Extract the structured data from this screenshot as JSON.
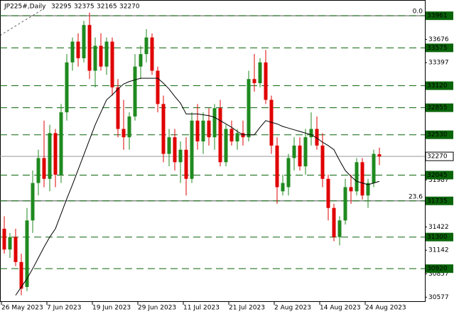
{
  "chart_data": {
    "type": "candlestick",
    "title": "JP225#,Daily",
    "categories": [
      "26 May 2023",
      null,
      null,
      null,
      null,
      null,
      null,
      null,
      "7 Jun 2023",
      null,
      null,
      null,
      null,
      null,
      null,
      null,
      "19 Jun 2023",
      null,
      null,
      null,
      null,
      null,
      null,
      null,
      "29 Jun 2023",
      null,
      null,
      null,
      null,
      null,
      null,
      null,
      "11 Jul 2023",
      null,
      null,
      null,
      null,
      null,
      null,
      null,
      "21 Jul 2023",
      null,
      null,
      null,
      null,
      null,
      null,
      null,
      "2 Aug 2023",
      null,
      null,
      null,
      null,
      null,
      null,
      null,
      "14 Aug 2023",
      null,
      null,
      null,
      null,
      null,
      null,
      null,
      "24 Aug 2023",
      null,
      null
    ],
    "open": [
      31400,
      31150,
      31300,
      31000,
      30700,
      31500,
      31950,
      32250,
      32000,
      32550,
      32050,
      32800,
      33400,
      33650,
      33450,
      33850,
      33300,
      33600,
      33350,
      33650,
      33100,
      32600,
      32500,
      32750,
      33350,
      33500,
      33700,
      33300,
      32900,
      32300,
      32500,
      32200,
      32350,
      32000,
      32700,
      32450,
      32700,
      32500,
      32850,
      32200,
      32600,
      32450,
      32550,
      32500,
      33200,
      33150,
      33400,
      32950,
      32400,
      31850,
      31900,
      32250,
      32400,
      32150,
      32500,
      32600,
      32400,
      32000,
      31650,
      31300,
      31500,
      31900,
      31850,
      32200,
      31800,
      31950,
      32295
    ],
    "high": [
      31550,
      31350,
      31400,
      31100,
      31650,
      32100,
      32350,
      32700,
      32650,
      32600,
      32900,
      33500,
      33700,
      33750,
      33900,
      34000,
      33700,
      33750,
      33700,
      33700,
      33200,
      32950,
      32800,
      33500,
      33600,
      33800,
      33750,
      33350,
      33000,
      32600,
      32600,
      32450,
      32500,
      32800,
      32900,
      32800,
      32850,
      32900,
      32950,
      32650,
      32700,
      32600,
      32700,
      33300,
      33500,
      33450,
      33550,
      33000,
      32500,
      32050,
      32300,
      32500,
      32500,
      32600,
      32800,
      32750,
      32550,
      32050,
      31700,
      31550,
      32000,
      32050,
      32250,
      32250,
      32000,
      32350,
      32375
    ],
    "low": [
      31100,
      31050,
      30950,
      30600,
      30650,
      31350,
      31800,
      31900,
      31850,
      31900,
      31950,
      32700,
      33300,
      33350,
      33400,
      33200,
      33100,
      33300,
      33250,
      33000,
      32500,
      32350,
      32350,
      32700,
      33200,
      33400,
      33250,
      32800,
      32200,
      32150,
      32100,
      31950,
      31800,
      31950,
      32350,
      32300,
      32400,
      32350,
      32150,
      32150,
      32400,
      32350,
      32400,
      32450,
      33050,
      33100,
      32900,
      32300,
      31700,
      31800,
      31800,
      32100,
      32100,
      32050,
      32400,
      32350,
      31900,
      31500,
      31250,
      31200,
      31450,
      31700,
      31800,
      31750,
      31650,
      31900,
      32165
    ],
    "close": [
      31150,
      31300,
      31000,
      30680,
      31500,
      31950,
      32250,
      32000,
      32550,
      32050,
      32800,
      33400,
      33650,
      33450,
      33850,
      33300,
      33600,
      33350,
      33650,
      33100,
      32600,
      32500,
      32750,
      33350,
      33500,
      33700,
      33300,
      32900,
      32300,
      32500,
      32200,
      32350,
      32000,
      32700,
      32450,
      32700,
      32500,
      32850,
      32200,
      32600,
      32450,
      32550,
      32500,
      33200,
      33150,
      33400,
      32950,
      32400,
      31900,
      31950,
      32250,
      32400,
      32150,
      32500,
      32600,
      32400,
      32000,
      31650,
      31300,
      31500,
      31900,
      31850,
      32200,
      31800,
      31950,
      32300,
      32270
    ],
    "ma": [
      null,
      null,
      30600,
      30700,
      30800,
      30920,
      31050,
      31180,
      31300,
      31400,
      31580,
      31760,
      31930,
      32110,
      32290,
      32470,
      32650,
      32800,
      32950,
      33010,
      33080,
      33140,
      33170,
      33190,
      33210,
      33210,
      33210,
      33210,
      33150,
      33080,
      32990,
      32910,
      32780,
      32780,
      32780,
      32770,
      32760,
      32740,
      32700,
      32660,
      32620,
      32570,
      32530,
      32530,
      32530,
      32620,
      32700,
      32680,
      32660,
      32630,
      32610,
      32590,
      32570,
      32550,
      32530,
      32490,
      32440,
      32400,
      32350,
      32220,
      32100,
      32030,
      31970,
      31950,
      31930,
      31950,
      31970
    ],
    "up_color": "#1f8a1f",
    "down_color": "#e00000",
    "ma_color": "#000000",
    "level_color": "#0a640a",
    "ylim": [
      30520,
      34065
    ],
    "yticks": [
      33676,
      33397,
      31987,
      31422,
      31142,
      30857,
      30577
    ],
    "levels": [
      33961,
      33575,
      33120,
      32855,
      32530,
      32045,
      31735,
      31300,
      30920
    ],
    "fib": [
      {
        "value": 33961,
        "label": "0.0"
      },
      {
        "value": 31735,
        "label": "23.6"
      }
    ]
  }
}
